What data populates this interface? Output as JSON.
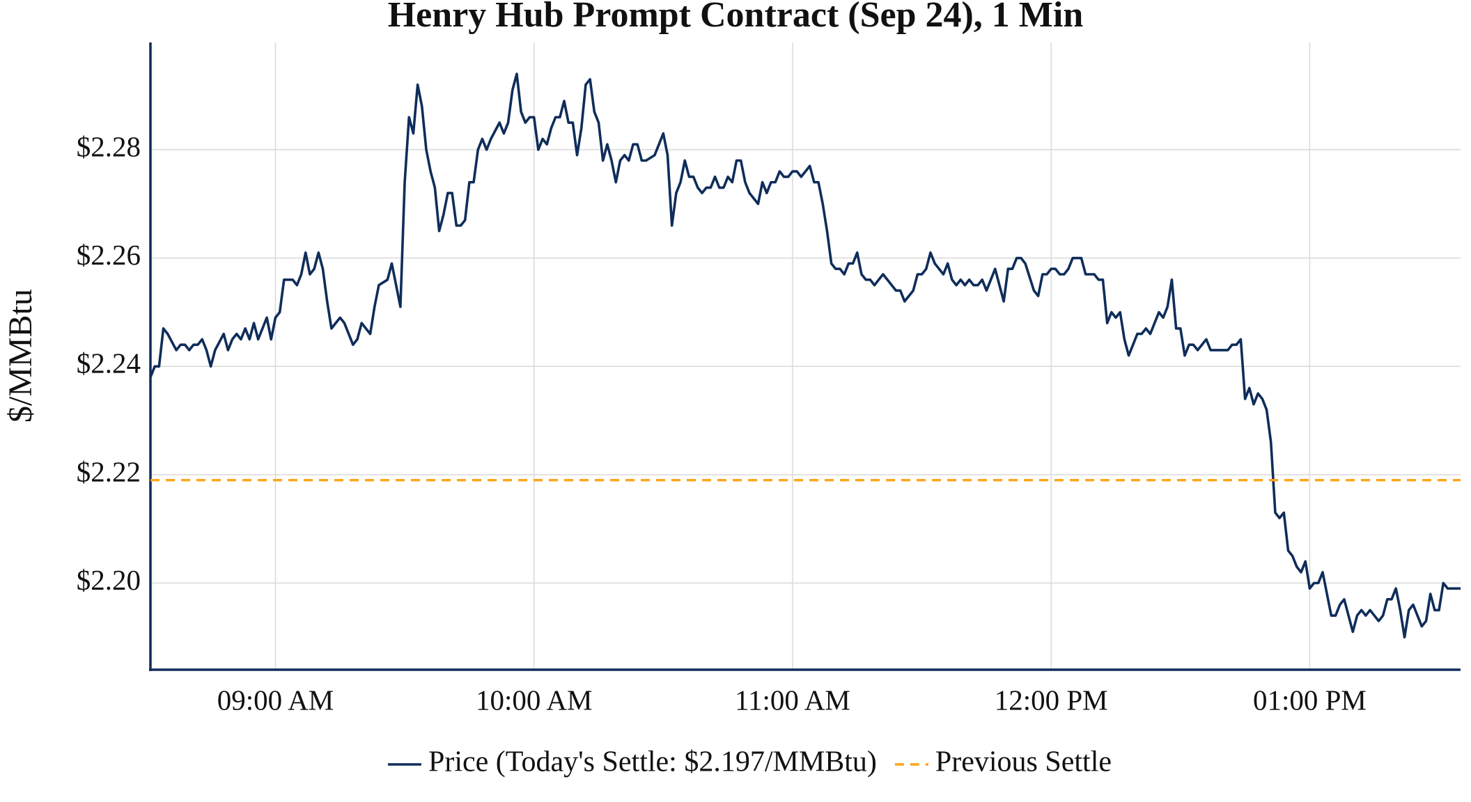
{
  "chart_data": {
    "type": "line",
    "title": "Henry Hub Prompt Contract (Sep 24), 1 Min",
    "y_label": "$/MMBtu",
    "grid": true,
    "legend": "bottom",
    "xlim": [
      "08:31",
      "13:35"
    ],
    "xticks": [
      {
        "value": "09:00",
        "label": "09:00 AM"
      },
      {
        "value": "10:00",
        "label": "10:00 AM"
      },
      {
        "value": "11:00",
        "label": "11:00 AM"
      },
      {
        "value": "12:00",
        "label": "12:00 PM"
      },
      {
        "value": "13:00",
        "label": "01:00 PM"
      }
    ],
    "ylim": [
      2.184,
      2.2998
    ],
    "yticks": [
      {
        "value": 2.2,
        "label": "$2.20"
      },
      {
        "value": 2.22,
        "label": "$2.22"
      },
      {
        "value": 2.24,
        "label": "$2.24"
      },
      {
        "value": 2.26,
        "label": "$2.26"
      },
      {
        "value": 2.28,
        "label": "$2.28"
      }
    ],
    "x": [
      "08:31",
      "08:32",
      "08:33",
      "08:34",
      "08:35",
      "08:37",
      "08:38",
      "08:39",
      "08:40",
      "08:41",
      "08:42",
      "08:43",
      "08:44",
      "08:45",
      "08:46",
      "08:48",
      "08:49",
      "08:50",
      "08:51",
      "08:52",
      "08:53",
      "08:54",
      "08:55",
      "08:56",
      "08:58",
      "08:59",
      "09:00",
      "09:01",
      "09:02",
      "09:03",
      "09:04",
      "09:05",
      "09:06",
      "09:07",
      "09:08",
      "09:09",
      "09:10",
      "09:11",
      "09:12",
      "09:13",
      "09:14",
      "09:15",
      "09:16",
      "09:17",
      "09:18",
      "09:19",
      "09:20",
      "09:21",
      "09:22",
      "09:23",
      "09:24",
      "09:26",
      "09:27",
      "09:28",
      "09:29",
      "09:30",
      "09:31",
      "09:32",
      "09:33",
      "09:34",
      "09:35",
      "09:36",
      "09:37",
      "09:38",
      "09:39",
      "09:40",
      "09:41",
      "09:42",
      "09:43",
      "09:44",
      "09:45",
      "09:46",
      "09:47",
      "09:48",
      "09:49",
      "09:50",
      "09:52",
      "09:53",
      "09:54",
      "09:55",
      "09:56",
      "09:57",
      "09:58",
      "09:59",
      "10:00",
      "10:01",
      "10:02",
      "10:03",
      "10:04",
      "10:05",
      "10:06",
      "10:07",
      "10:08",
      "10:09",
      "10:10",
      "10:11",
      "10:12",
      "10:13",
      "10:14",
      "10:15",
      "10:16",
      "10:17",
      "10:18",
      "10:19",
      "10:20",
      "10:21",
      "10:22",
      "10:23",
      "10:24",
      "10:25",
      "10:26",
      "10:28",
      "10:29",
      "10:30",
      "10:31",
      "10:32",
      "10:33",
      "10:34",
      "10:35",
      "10:36",
      "10:37",
      "10:38",
      "10:39",
      "10:40",
      "10:41",
      "10:42",
      "10:43",
      "10:44",
      "10:45",
      "10:46",
      "10:47",
      "10:48",
      "10:49",
      "10:50",
      "10:52",
      "10:53",
      "10:54",
      "10:55",
      "10:56",
      "10:57",
      "10:58",
      "10:59",
      "11:00",
      "11:01",
      "11:02",
      "11:03",
      "11:04",
      "11:05",
      "11:06",
      "11:07",
      "11:08",
      "11:09",
      "11:10",
      "11:11",
      "11:12",
      "11:13",
      "11:14",
      "11:15",
      "11:16",
      "11:17",
      "11:18",
      "11:19",
      "11:20",
      "11:21",
      "11:22",
      "11:23",
      "11:24",
      "11:25",
      "11:26",
      "11:27",
      "11:28",
      "11:29",
      "11:30",
      "11:31",
      "11:32",
      "11:33",
      "11:35",
      "11:36",
      "11:37",
      "11:38",
      "11:39",
      "11:40",
      "11:41",
      "11:42",
      "11:43",
      "11:44",
      "11:45",
      "11:46",
      "11:47",
      "11:48",
      "11:49",
      "11:50",
      "11:51",
      "11:52",
      "11:53",
      "11:54",
      "11:56",
      "11:57",
      "11:58",
      "11:59",
      "12:00",
      "12:01",
      "12:02",
      "12:03",
      "12:04",
      "12:05",
      "12:06",
      "12:07",
      "12:08",
      "12:09",
      "12:10",
      "12:11",
      "12:12",
      "12:13",
      "12:14",
      "12:15",
      "12:16",
      "12:17",
      "12:18",
      "12:19",
      "12:20",
      "12:21",
      "12:22",
      "12:23",
      "12:24",
      "12:25",
      "12:26",
      "12:27",
      "12:28",
      "12:29",
      "12:30",
      "12:31",
      "12:32",
      "12:33",
      "12:34",
      "12:35",
      "12:36",
      "12:37",
      "12:38",
      "12:39",
      "12:40",
      "12:41",
      "12:42",
      "12:43",
      "12:44",
      "12:45",
      "12:46",
      "12:47",
      "12:48",
      "12:49",
      "12:50",
      "12:51",
      "12:52",
      "12:53",
      "12:54",
      "12:55",
      "12:56",
      "12:57",
      "12:58",
      "12:59",
      "13:00",
      "13:01",
      "13:02",
      "13:03",
      "13:04",
      "13:05",
      "13:06",
      "13:07",
      "13:08",
      "13:09",
      "13:10",
      "13:11",
      "13:12",
      "13:13",
      "13:14",
      "13:15",
      "13:16",
      "13:17",
      "13:18",
      "13:19",
      "13:20",
      "13:21",
      "13:22",
      "13:23",
      "13:24",
      "13:25",
      "13:26",
      "13:27",
      "13:28",
      "13:29",
      "13:30",
      "13:31",
      "13:32",
      "13:34",
      "13:35"
    ],
    "series": [
      {
        "name": "Price (Today's Settle: $2.197/MMBtu)",
        "color": "#0f2d5a",
        "values": [
          2.238,
          2.24,
          2.24,
          2.247,
          2.246,
          2.243,
          2.244,
          2.244,
          2.243,
          2.244,
          2.244,
          2.245,
          2.243,
          2.24,
          2.243,
          2.246,
          2.243,
          2.245,
          2.246,
          2.245,
          2.247,
          2.245,
          2.248,
          2.245,
          2.249,
          2.245,
          2.249,
          2.25,
          2.256,
          2.256,
          2.256,
          2.255,
          2.257,
          2.261,
          2.257,
          2.258,
          2.261,
          2.258,
          2.252,
          2.247,
          2.248,
          2.249,
          2.248,
          2.246,
          2.244,
          2.245,
          2.248,
          2.247,
          2.246,
          2.251,
          2.255,
          2.256,
          2.259,
          2.255,
          2.251,
          2.274,
          2.286,
          2.283,
          2.292,
          2.288,
          2.28,
          2.276,
          2.273,
          2.265,
          2.268,
          2.272,
          2.272,
          2.266,
          2.266,
          2.267,
          2.274,
          2.274,
          2.28,
          2.282,
          2.28,
          2.282,
          2.285,
          2.283,
          2.285,
          2.291,
          2.294,
          2.287,
          2.285,
          2.286,
          2.286,
          2.28,
          2.282,
          2.281,
          2.284,
          2.286,
          2.286,
          2.289,
          2.285,
          2.285,
          2.279,
          2.284,
          2.292,
          2.293,
          2.287,
          2.285,
          2.278,
          2.281,
          2.278,
          2.274,
          2.278,
          2.279,
          2.278,
          2.281,
          2.281,
          2.278,
          2.278,
          2.279,
          2.281,
          2.283,
          2.279,
          2.266,
          2.272,
          2.274,
          2.278,
          2.275,
          2.275,
          2.273,
          2.272,
          2.273,
          2.273,
          2.275,
          2.273,
          2.273,
          2.275,
          2.274,
          2.278,
          2.278,
          2.274,
          2.272,
          2.27,
          2.274,
          2.272,
          2.274,
          2.274,
          2.276,
          2.275,
          2.275,
          2.276,
          2.276,
          2.275,
          2.276,
          2.277,
          2.274,
          2.274,
          2.27,
          2.265,
          2.259,
          2.258,
          2.258,
          2.257,
          2.259,
          2.259,
          2.261,
          2.257,
          2.256,
          2.256,
          2.255,
          2.256,
          2.257,
          2.256,
          2.255,
          2.254,
          2.254,
          2.252,
          2.253,
          2.254,
          2.257,
          2.257,
          2.258,
          2.261,
          2.259,
          2.257,
          2.259,
          2.256,
          2.255,
          2.256,
          2.255,
          2.256,
          2.255,
          2.255,
          2.256,
          2.254,
          2.256,
          2.258,
          2.255,
          2.252,
          2.258,
          2.258,
          2.26,
          2.26,
          2.259,
          2.254,
          2.253,
          2.257,
          2.257,
          2.258,
          2.258,
          2.257,
          2.257,
          2.258,
          2.26,
          2.26,
          2.26,
          2.257,
          2.257,
          2.257,
          2.256,
          2.256,
          2.248,
          2.25,
          2.249,
          2.25,
          2.245,
          2.242,
          2.244,
          2.246,
          2.246,
          2.247,
          2.246,
          2.248,
          2.25,
          2.249,
          2.251,
          2.256,
          2.247,
          2.247,
          2.242,
          2.244,
          2.244,
          2.243,
          2.244,
          2.245,
          2.243,
          2.243,
          2.243,
          2.243,
          2.243,
          2.244,
          2.244,
          2.245,
          2.234,
          2.236,
          2.233,
          2.235,
          2.234,
          2.232,
          2.226,
          2.213,
          2.212,
          2.213,
          2.206,
          2.205,
          2.203,
          2.202,
          2.204,
          2.199,
          2.2,
          2.2,
          2.202,
          2.198,
          2.194,
          2.194,
          2.196,
          2.197,
          2.194,
          2.191,
          2.194,
          2.195,
          2.194,
          2.195,
          2.194,
          2.193,
          2.194,
          2.197,
          2.197,
          2.199,
          2.195,
          2.19,
          2.195,
          2.196,
          2.194,
          2.192,
          2.193,
          2.198,
          2.195,
          2.195,
          2.2,
          2.199,
          2.199,
          2.199
        ]
      },
      {
        "name": "Previous Settle",
        "color": "#ffa31a",
        "dashed": true,
        "level": 2.219
      }
    ]
  }
}
